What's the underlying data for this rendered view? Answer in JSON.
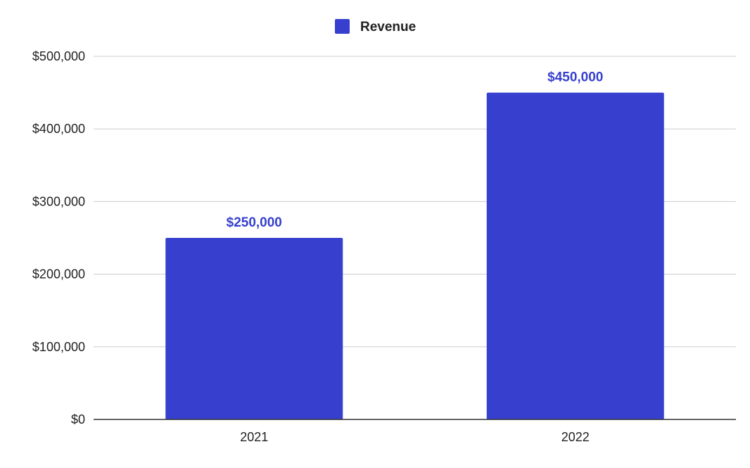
{
  "chart_data": {
    "type": "bar",
    "categories": [
      "2021",
      "2022"
    ],
    "series": [
      {
        "name": "Revenue",
        "values": [
          250000,
          450000
        ],
        "color": "#3740CE",
        "data_labels": [
          "$250,000",
          "$450,000"
        ]
      }
    ],
    "title": "",
    "xlabel": "",
    "ylabel": "",
    "ylim": [
      0,
      500000
    ],
    "yticks": [
      0,
      100000,
      200000,
      300000,
      400000,
      500000
    ],
    "ytick_labels": [
      "$0",
      "$100,000",
      "$200,000",
      "$300,000",
      "$400,000",
      "$500,000"
    ],
    "grid": true,
    "legend_position": "top"
  }
}
